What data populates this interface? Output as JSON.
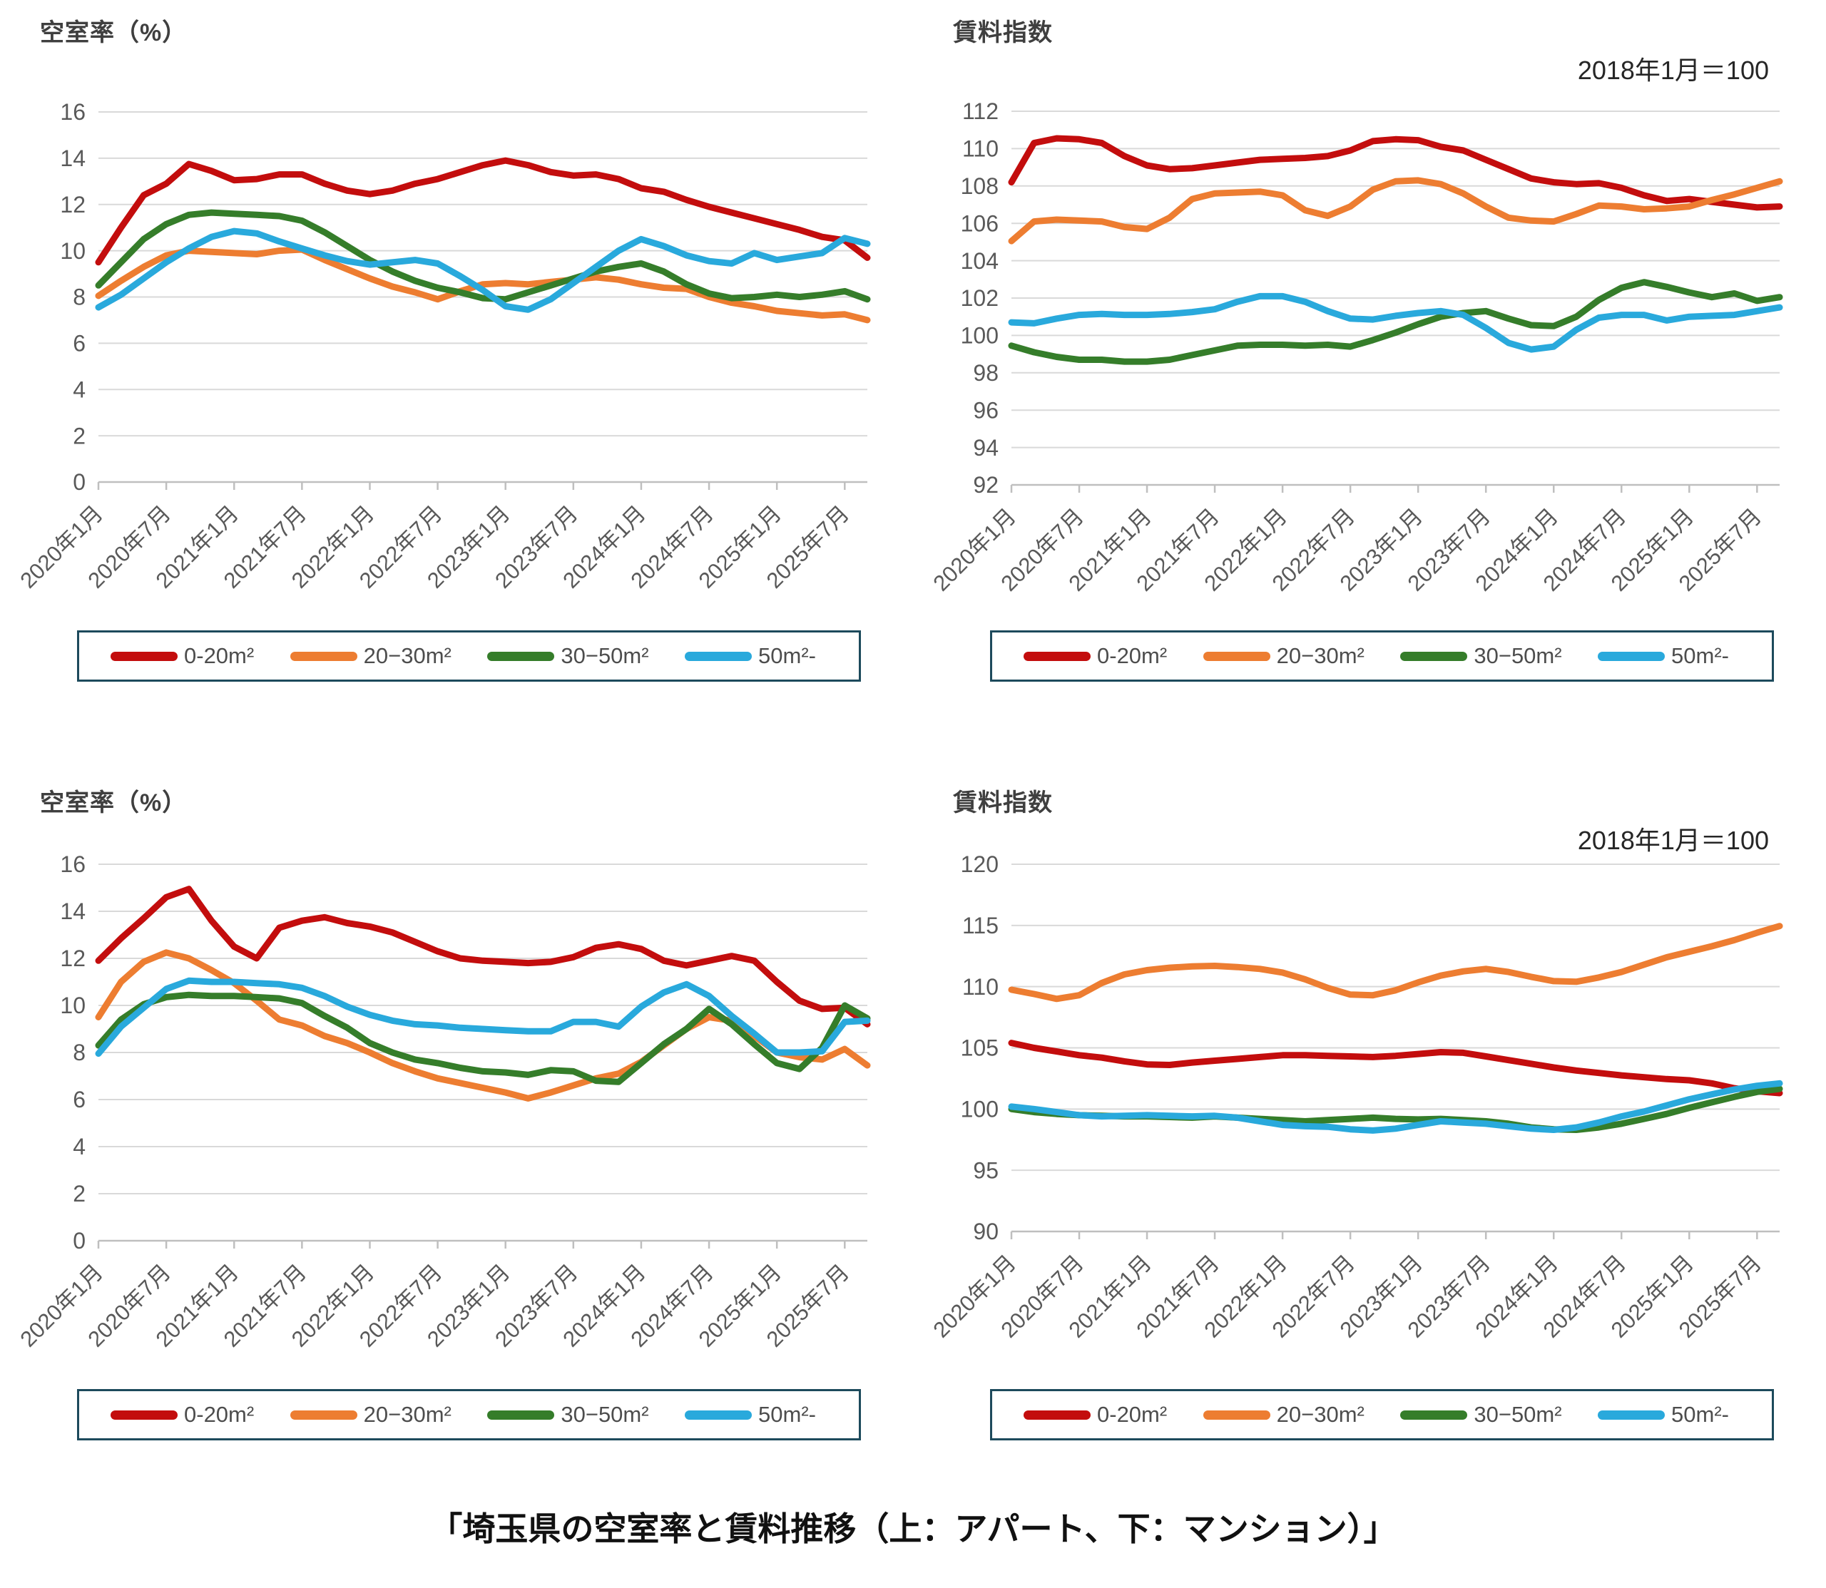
{
  "page": {
    "caption": "「埼玉県の空室率と賃料推移（上：アパート、下：マンション）」",
    "background": "#FFFFFF"
  },
  "colors": {
    "series_red": "#C30D0D",
    "series_orange": "#ED7D31",
    "series_green": "#357D2A",
    "series_blue": "#29A9DC",
    "gridline": "#D9D9D9",
    "axis": "#BFBFBF",
    "title_text": "#3F3F3F",
    "tick_text": "#595959",
    "legend_border": "#1D4A5C"
  },
  "chart_data": [
    {
      "type": "line",
      "title": "空室率（%）",
      "subtitle": "",
      "group": "アパート",
      "ylabel": "空室率（%）",
      "xlabel": "",
      "ylim": [
        0,
        16
      ],
      "y_step": 2,
      "grid": true,
      "legend_position": "bottom",
      "x_tick_labels": [
        "2020年1月",
        "2020年7月",
        "2021年1月",
        "2021年7月",
        "2022年1月",
        "2022年7月",
        "2023年1月",
        "2023年7月",
        "2024年1月",
        "2024年7月",
        "2025年1月",
        "2025年7月"
      ],
      "x": [
        "2020-01",
        "2020-03",
        "2020-05",
        "2020-07",
        "2020-09",
        "2020-11",
        "2021-01",
        "2021-03",
        "2021-05",
        "2021-07",
        "2021-09",
        "2021-11",
        "2022-01",
        "2022-03",
        "2022-05",
        "2022-07",
        "2022-09",
        "2022-11",
        "2023-01",
        "2023-03",
        "2023-05",
        "2023-07",
        "2023-09",
        "2023-11",
        "2024-01",
        "2024-03",
        "2024-05",
        "2024-07",
        "2024-09",
        "2024-11",
        "2025-01",
        "2025-03",
        "2025-05",
        "2025-07",
        "2025-09"
      ],
      "series": [
        {
          "name": "0-20m²",
          "color": "#C30D0D",
          "values": [
            9.5,
            11.0,
            12.4,
            12.9,
            13.75,
            13.45,
            13.05,
            13.1,
            13.3,
            13.3,
            12.9,
            12.6,
            12.45,
            12.6,
            12.9,
            13.1,
            13.4,
            13.7,
            13.9,
            13.7,
            13.4,
            13.25,
            13.3,
            13.1,
            12.7,
            12.55,
            12.2,
            11.9,
            11.65,
            11.4,
            11.15,
            10.9,
            10.6,
            10.45,
            9.7
          ]
        },
        {
          "name": "20−30m²",
          "color": "#ED7D31",
          "values": [
            8.05,
            8.7,
            9.3,
            9.8,
            10.0,
            9.95,
            9.9,
            9.85,
            10.0,
            10.05,
            9.6,
            9.2,
            8.8,
            8.45,
            8.2,
            7.9,
            8.25,
            8.55,
            8.6,
            8.55,
            8.65,
            8.75,
            8.85,
            8.75,
            8.55,
            8.4,
            8.35,
            8.0,
            7.75,
            7.6,
            7.4,
            7.3,
            7.2,
            7.25,
            7.0
          ]
        },
        {
          "name": "30−50m²",
          "color": "#357D2A",
          "values": [
            8.5,
            9.5,
            10.5,
            11.15,
            11.55,
            11.65,
            11.6,
            11.55,
            11.5,
            11.3,
            10.8,
            10.2,
            9.6,
            9.1,
            8.7,
            8.4,
            8.2,
            7.95,
            7.9,
            8.2,
            8.5,
            8.8,
            9.1,
            9.3,
            9.45,
            9.1,
            8.55,
            8.15,
            7.95,
            8.0,
            8.1,
            8.0,
            8.1,
            8.25,
            7.9
          ]
        },
        {
          "name": "50m²-",
          "color": "#29A9DC",
          "values": [
            7.55,
            8.1,
            8.8,
            9.5,
            10.1,
            10.6,
            10.85,
            10.75,
            10.4,
            10.1,
            9.8,
            9.55,
            9.4,
            9.5,
            9.6,
            9.45,
            8.9,
            8.3,
            7.6,
            7.45,
            7.9,
            8.6,
            9.3,
            10.0,
            10.5,
            10.2,
            9.8,
            9.55,
            9.45,
            9.9,
            9.6,
            9.75,
            9.9,
            10.55,
            10.3
          ]
        }
      ],
      "layout": {
        "plot_left": 138,
        "plot_right": 1216,
        "plot_top": 157,
        "plot_bottom": 676
      }
    },
    {
      "type": "line",
      "title": "賃料指数",
      "subtitle": "2018年1月＝100",
      "group": "アパート",
      "ylabel": "賃料指数",
      "xlabel": "",
      "ylim": [
        92,
        112
      ],
      "y_step": 2,
      "grid": true,
      "legend_position": "bottom",
      "x_tick_labels": [
        "2020年1月",
        "2020年7月",
        "2021年1月",
        "2021年7月",
        "2022年1月",
        "2022年7月",
        "2023年1月",
        "2023年7月",
        "2024年1月",
        "2024年7月",
        "2025年1月",
        "2025年7月"
      ],
      "x": [
        "2020-01",
        "2020-03",
        "2020-05",
        "2020-07",
        "2020-09",
        "2020-11",
        "2021-01",
        "2021-03",
        "2021-05",
        "2021-07",
        "2021-09",
        "2021-11",
        "2022-01",
        "2022-03",
        "2022-05",
        "2022-07",
        "2022-09",
        "2022-11",
        "2023-01",
        "2023-03",
        "2023-05",
        "2023-07",
        "2023-09",
        "2023-11",
        "2024-01",
        "2024-03",
        "2024-05",
        "2024-07",
        "2024-09",
        "2024-11",
        "2025-01",
        "2025-03",
        "2025-05",
        "2025-07",
        "2025-09"
      ],
      "series": [
        {
          "name": "0-20m²",
          "color": "#C30D0D",
          "values": [
            108.2,
            110.3,
            110.55,
            110.5,
            110.3,
            109.6,
            109.1,
            108.9,
            108.95,
            109.1,
            109.25,
            109.4,
            109.45,
            109.5,
            109.6,
            109.9,
            110.4,
            110.5,
            110.45,
            110.1,
            109.9,
            109.4,
            108.9,
            108.4,
            108.2,
            108.1,
            108.15,
            107.9,
            107.5,
            107.2,
            107.3,
            107.15,
            107.0,
            106.85,
            106.9
          ]
        },
        {
          "name": "20−30m²",
          "color": "#ED7D31",
          "values": [
            105.05,
            106.1,
            106.2,
            106.15,
            106.1,
            105.8,
            105.7,
            106.3,
            107.3,
            107.6,
            107.65,
            107.7,
            107.5,
            106.7,
            106.4,
            106.9,
            107.8,
            108.25,
            108.3,
            108.1,
            107.6,
            106.9,
            106.3,
            106.15,
            106.1,
            106.5,
            106.95,
            106.9,
            106.75,
            106.8,
            106.9,
            107.25,
            107.55,
            107.9,
            108.25
          ]
        },
        {
          "name": "30−50m²",
          "color": "#357D2A",
          "values": [
            99.45,
            99.1,
            98.85,
            98.7,
            98.7,
            98.6,
            98.6,
            98.7,
            98.95,
            99.2,
            99.45,
            99.5,
            99.5,
            99.45,
            99.5,
            99.4,
            99.75,
            100.15,
            100.6,
            101.0,
            101.2,
            101.3,
            100.9,
            100.55,
            100.5,
            101.0,
            101.9,
            102.55,
            102.85,
            102.6,
            102.3,
            102.05,
            102.25,
            101.85,
            102.05
          ]
        },
        {
          "name": "50m²-",
          "color": "#29A9DC",
          "values": [
            100.7,
            100.65,
            100.9,
            101.1,
            101.15,
            101.1,
            101.1,
            101.15,
            101.25,
            101.4,
            101.8,
            102.1,
            102.1,
            101.8,
            101.3,
            100.9,
            100.85,
            101.05,
            101.2,
            101.3,
            101.1,
            100.4,
            99.6,
            99.25,
            99.4,
            100.3,
            100.95,
            101.1,
            101.1,
            100.8,
            101.0,
            101.05,
            101.1,
            101.3,
            101.5
          ]
        }
      ],
      "layout": {
        "plot_left": 138,
        "plot_right": 1215,
        "plot_top": 156,
        "plot_bottom": 680
      }
    },
    {
      "type": "line",
      "title": "空室率（%）",
      "subtitle": "",
      "group": "マンション",
      "ylabel": "空室率（%）",
      "xlabel": "",
      "ylim": [
        0,
        16
      ],
      "y_step": 2,
      "grid": true,
      "legend_position": "bottom",
      "x_tick_labels": [
        "2020年1月",
        "2020年7月",
        "2021年1月",
        "2021年7月",
        "2022年1月",
        "2022年7月",
        "2023年1月",
        "2023年7月",
        "2024年1月",
        "2024年7月",
        "2025年1月",
        "2025年7月"
      ],
      "x": [
        "2020-01",
        "2020-03",
        "2020-05",
        "2020-07",
        "2020-09",
        "2020-11",
        "2021-01",
        "2021-03",
        "2021-05",
        "2021-07",
        "2021-09",
        "2021-11",
        "2022-01",
        "2022-03",
        "2022-05",
        "2022-07",
        "2022-09",
        "2022-11",
        "2023-01",
        "2023-03",
        "2023-05",
        "2023-07",
        "2023-09",
        "2023-11",
        "2024-01",
        "2024-03",
        "2024-05",
        "2024-07",
        "2024-09",
        "2024-11",
        "2025-01",
        "2025-03",
        "2025-05",
        "2025-07",
        "2025-09"
      ],
      "series": [
        {
          "name": "0-20m²",
          "color": "#C30D0D",
          "values": [
            11.9,
            12.85,
            13.7,
            14.6,
            14.95,
            13.6,
            12.5,
            12.0,
            13.3,
            13.6,
            13.75,
            13.5,
            13.35,
            13.1,
            12.7,
            12.3,
            12.0,
            11.9,
            11.85,
            11.8,
            11.85,
            12.05,
            12.45,
            12.6,
            12.4,
            11.9,
            11.7,
            11.9,
            12.1,
            11.9,
            11.0,
            10.2,
            9.85,
            9.9,
            9.2
          ]
        },
        {
          "name": "20−30m²",
          "color": "#ED7D31",
          "values": [
            9.5,
            11.0,
            11.85,
            12.25,
            12.0,
            11.5,
            10.95,
            10.2,
            9.4,
            9.15,
            8.7,
            8.4,
            8.0,
            7.55,
            7.2,
            6.9,
            6.7,
            6.5,
            6.3,
            6.05,
            6.3,
            6.6,
            6.9,
            7.1,
            7.6,
            8.3,
            9.0,
            9.5,
            9.35,
            8.7,
            8.0,
            7.8,
            7.7,
            8.15,
            7.45
          ]
        },
        {
          "name": "30−50m²",
          "color": "#357D2A",
          "values": [
            8.3,
            9.4,
            10.05,
            10.35,
            10.45,
            10.4,
            10.4,
            10.35,
            10.3,
            10.1,
            9.55,
            9.05,
            8.4,
            8.0,
            7.7,
            7.55,
            7.35,
            7.2,
            7.15,
            7.05,
            7.25,
            7.2,
            6.8,
            6.75,
            7.55,
            8.35,
            9.0,
            9.85,
            9.2,
            8.35,
            7.55,
            7.3,
            8.2,
            10.0,
            9.45
          ]
        },
        {
          "name": "50m²-",
          "color": "#29A9DC",
          "values": [
            7.95,
            9.1,
            9.9,
            10.7,
            11.05,
            11.0,
            11.0,
            10.95,
            10.9,
            10.75,
            10.4,
            9.95,
            9.6,
            9.35,
            9.2,
            9.15,
            9.05,
            9.0,
            8.95,
            8.9,
            8.9,
            9.3,
            9.3,
            9.1,
            9.95,
            10.55,
            10.9,
            10.4,
            9.55,
            8.8,
            8.0,
            8.0,
            8.05,
            9.3,
            9.35
          ]
        }
      ],
      "layout": {
        "plot_left": 138,
        "plot_right": 1216,
        "plot_top": 132,
        "plot_bottom": 660
      }
    },
    {
      "type": "line",
      "title": "賃料指数",
      "subtitle": "2018年1月＝100",
      "group": "マンション",
      "ylabel": "賃料指数",
      "xlabel": "",
      "ylim": [
        90,
        120
      ],
      "y_step": 5,
      "grid": true,
      "legend_position": "bottom",
      "x_tick_labels": [
        "2020年1月",
        "2020年7月",
        "2021年1月",
        "2021年7月",
        "2022年1月",
        "2022年7月",
        "2023年1月",
        "2023年7月",
        "2024年1月",
        "2024年7月",
        "2025年1月",
        "2025年7月"
      ],
      "x": [
        "2020-01",
        "2020-03",
        "2020-05",
        "2020-07",
        "2020-09",
        "2020-11",
        "2021-01",
        "2021-03",
        "2021-05",
        "2021-07",
        "2021-09",
        "2021-11",
        "2022-01",
        "2022-03",
        "2022-05",
        "2022-07",
        "2022-09",
        "2022-11",
        "2023-01",
        "2023-03",
        "2023-05",
        "2023-07",
        "2023-09",
        "2023-11",
        "2024-01",
        "2024-03",
        "2024-05",
        "2024-07",
        "2024-09",
        "2024-11",
        "2025-01",
        "2025-03",
        "2025-05",
        "2025-07",
        "2025-09"
      ],
      "series": [
        {
          "name": "0-20m²",
          "color": "#C30D0D",
          "values": [
            105.4,
            105.0,
            104.7,
            104.4,
            104.2,
            103.9,
            103.65,
            103.6,
            103.8,
            103.95,
            104.1,
            104.25,
            104.4,
            104.4,
            104.35,
            104.3,
            104.25,
            104.35,
            104.5,
            104.65,
            104.6,
            104.3,
            104.0,
            103.7,
            103.4,
            103.15,
            102.95,
            102.75,
            102.6,
            102.45,
            102.35,
            102.1,
            101.7,
            101.45,
            101.3
          ]
        },
        {
          "name": "20−30m²",
          "color": "#ED7D31",
          "values": [
            109.75,
            109.4,
            109.0,
            109.3,
            110.3,
            111.0,
            111.35,
            111.55,
            111.65,
            111.7,
            111.6,
            111.45,
            111.15,
            110.6,
            109.9,
            109.35,
            109.3,
            109.7,
            110.35,
            110.9,
            111.25,
            111.45,
            111.2,
            110.8,
            110.45,
            110.4,
            110.75,
            111.2,
            111.8,
            112.4,
            112.85,
            113.3,
            113.8,
            114.4,
            114.95
          ]
        },
        {
          "name": "30−50m²",
          "color": "#357D2A",
          "values": [
            100.0,
            99.75,
            99.6,
            99.5,
            99.45,
            99.4,
            99.4,
            99.35,
            99.3,
            99.4,
            99.3,
            99.2,
            99.1,
            99.0,
            99.1,
            99.2,
            99.3,
            99.2,
            99.15,
            99.2,
            99.1,
            99.0,
            98.8,
            98.5,
            98.35,
            98.3,
            98.5,
            98.8,
            99.2,
            99.6,
            100.1,
            100.55,
            101.0,
            101.4,
            101.65
          ]
        },
        {
          "name": "50m²-",
          "color": "#29A9DC",
          "values": [
            100.2,
            100.0,
            99.75,
            99.5,
            99.4,
            99.45,
            99.5,
            99.45,
            99.4,
            99.45,
            99.3,
            99.0,
            98.7,
            98.6,
            98.55,
            98.35,
            98.25,
            98.4,
            98.7,
            99.0,
            98.9,
            98.8,
            98.6,
            98.4,
            98.3,
            98.5,
            98.9,
            99.4,
            99.8,
            100.3,
            100.8,
            101.2,
            101.6,
            101.9,
            102.1
          ]
        }
      ],
      "layout": {
        "plot_left": 138,
        "plot_right": 1215,
        "plot_top": 132,
        "plot_bottom": 647
      }
    }
  ]
}
